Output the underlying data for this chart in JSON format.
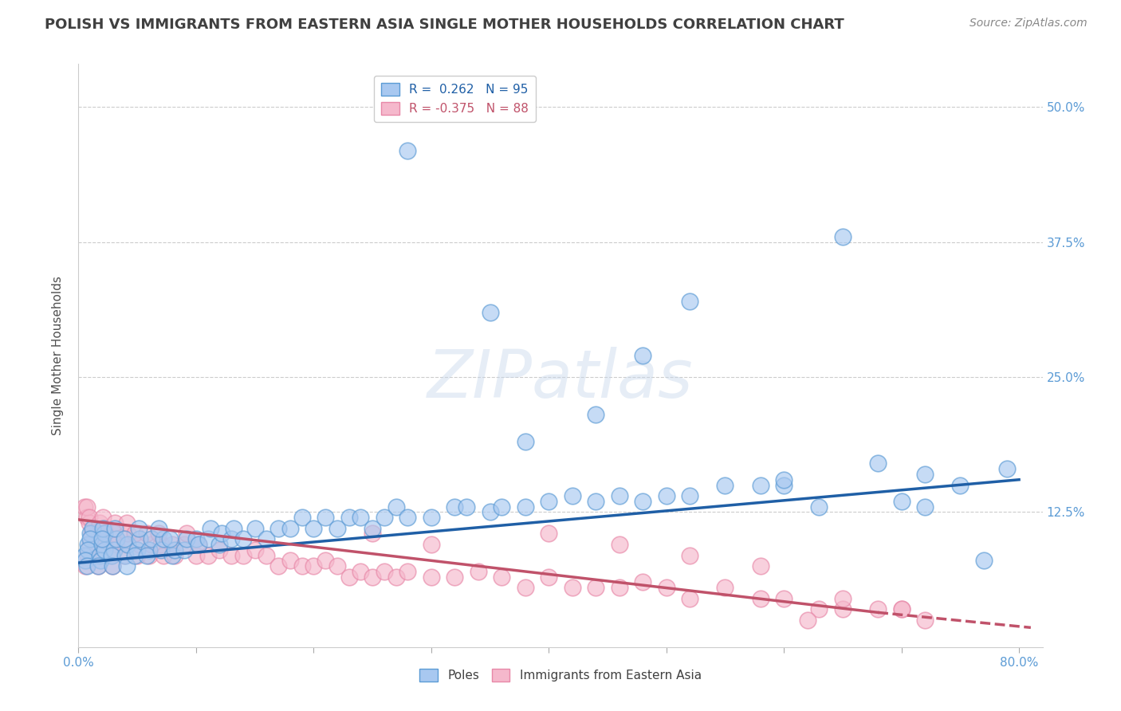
{
  "title": "POLISH VS IMMIGRANTS FROM EASTERN ASIA SINGLE MOTHER HOUSEHOLDS CORRELATION CHART",
  "source_text": "Source: ZipAtlas.com",
  "ylabel": "Single Mother Households",
  "watermark": "ZIPatlas",
  "legend_entries": [
    {
      "label": "Poles",
      "R": 0.262,
      "N": 95
    },
    {
      "label": "Immigrants from Eastern Asia",
      "R": -0.375,
      "N": 88
    }
  ],
  "xlim": [
    0.0,
    0.82
  ],
  "ylim": [
    0.0,
    0.54
  ],
  "yticks": [
    0.0,
    0.125,
    0.25,
    0.375,
    0.5
  ],
  "ytick_labels": [
    "",
    "12.5%",
    "25.0%",
    "37.5%",
    "50.0%"
  ],
  "xticks": [
    0.0,
    0.1,
    0.2,
    0.3,
    0.4,
    0.5,
    0.6,
    0.7,
    0.8
  ],
  "xtick_labels": [
    "0.0%",
    "",
    "",
    "",
    "",
    "",
    "",
    "",
    "80.0%"
  ],
  "blue_fill": "#a8c8f0",
  "blue_edge": "#5b9bd5",
  "blue_line": "#1f5fa6",
  "pink_fill": "#f5b8cc",
  "pink_edge": "#e888a8",
  "pink_line": "#c0526a",
  "background_color": "#ffffff",
  "grid_color": "#cccccc",
  "title_color": "#404040",
  "poles_scatter": {
    "x": [
      0.005,
      0.008,
      0.01,
      0.012,
      0.01,
      0.008,
      0.006,
      0.007,
      0.018,
      0.02,
      0.022,
      0.021,
      0.019,
      0.022,
      0.02,
      0.017,
      0.03,
      0.032,
      0.028,
      0.031,
      0.029,
      0.04,
      0.042,
      0.039,
      0.041,
      0.05,
      0.052,
      0.048,
      0.051,
      0.06,
      0.062,
      0.058,
      0.07,
      0.072,
      0.068,
      0.08,
      0.082,
      0.078,
      0.09,
      0.092,
      0.1,
      0.102,
      0.11,
      0.112,
      0.12,
      0.122,
      0.13,
      0.132,
      0.14,
      0.15,
      0.16,
      0.17,
      0.18,
      0.19,
      0.2,
      0.21,
      0.22,
      0.23,
      0.24,
      0.25,
      0.26,
      0.27,
      0.28,
      0.3,
      0.32,
      0.33,
      0.35,
      0.36,
      0.38,
      0.4,
      0.42,
      0.44,
      0.46,
      0.48,
      0.5,
      0.52,
      0.55,
      0.58,
      0.6,
      0.35,
      0.48,
      0.52,
      0.38,
      0.44,
      0.28,
      0.6,
      0.72,
      0.75,
      0.77,
      0.79,
      0.65,
      0.68,
      0.7,
      0.72,
      0.63
    ],
    "y": [
      0.085,
      0.095,
      0.105,
      0.11,
      0.1,
      0.09,
      0.08,
      0.075,
      0.085,
      0.095,
      0.105,
      0.11,
      0.08,
      0.09,
      0.1,
      0.075,
      0.09,
      0.1,
      0.085,
      0.11,
      0.075,
      0.085,
      0.095,
      0.1,
      0.075,
      0.09,
      0.1,
      0.085,
      0.11,
      0.09,
      0.1,
      0.085,
      0.09,
      0.1,
      0.11,
      0.085,
      0.09,
      0.1,
      0.09,
      0.1,
      0.1,
      0.095,
      0.1,
      0.11,
      0.095,
      0.105,
      0.1,
      0.11,
      0.1,
      0.11,
      0.1,
      0.11,
      0.11,
      0.12,
      0.11,
      0.12,
      0.11,
      0.12,
      0.12,
      0.11,
      0.12,
      0.13,
      0.12,
      0.12,
      0.13,
      0.13,
      0.125,
      0.13,
      0.13,
      0.135,
      0.14,
      0.135,
      0.14,
      0.135,
      0.14,
      0.14,
      0.15,
      0.15,
      0.15,
      0.31,
      0.27,
      0.32,
      0.19,
      0.215,
      0.46,
      0.155,
      0.16,
      0.15,
      0.08,
      0.165,
      0.38,
      0.17,
      0.135,
      0.13,
      0.13
    ]
  },
  "asia_scatter": {
    "x": [
      0.005,
      0.007,
      0.009,
      0.011,
      0.01,
      0.008,
      0.006,
      0.007,
      0.009,
      0.018,
      0.02,
      0.022,
      0.019,
      0.021,
      0.022,
      0.02,
      0.017,
      0.03,
      0.032,
      0.028,
      0.031,
      0.029,
      0.04,
      0.042,
      0.039,
      0.041,
      0.05,
      0.052,
      0.048,
      0.06,
      0.062,
      0.058,
      0.07,
      0.072,
      0.068,
      0.08,
      0.082,
      0.09,
      0.092,
      0.1,
      0.102,
      0.11,
      0.12,
      0.13,
      0.14,
      0.15,
      0.16,
      0.17,
      0.18,
      0.19,
      0.2,
      0.21,
      0.22,
      0.23,
      0.24,
      0.25,
      0.26,
      0.27,
      0.28,
      0.3,
      0.32,
      0.34,
      0.36,
      0.38,
      0.4,
      0.42,
      0.44,
      0.46,
      0.48,
      0.5,
      0.52,
      0.55,
      0.58,
      0.6,
      0.63,
      0.65,
      0.68,
      0.7,
      0.25,
      0.3,
      0.4,
      0.46,
      0.52,
      0.58,
      0.65,
      0.7,
      0.72,
      0.62
    ],
    "y": [
      0.13,
      0.12,
      0.115,
      0.105,
      0.095,
      0.085,
      0.075,
      0.13,
      0.12,
      0.115,
      0.105,
      0.095,
      0.085,
      0.12,
      0.11,
      0.1,
      0.075,
      0.105,
      0.095,
      0.085,
      0.115,
      0.075,
      0.095,
      0.105,
      0.085,
      0.115,
      0.085,
      0.095,
      0.105,
      0.085,
      0.095,
      0.105,
      0.095,
      0.085,
      0.105,
      0.095,
      0.085,
      0.095,
      0.105,
      0.085,
      0.095,
      0.085,
      0.09,
      0.085,
      0.085,
      0.09,
      0.085,
      0.075,
      0.08,
      0.075,
      0.075,
      0.08,
      0.075,
      0.065,
      0.07,
      0.065,
      0.07,
      0.065,
      0.07,
      0.065,
      0.065,
      0.07,
      0.065,
      0.055,
      0.065,
      0.055,
      0.055,
      0.055,
      0.06,
      0.055,
      0.045,
      0.055,
      0.045,
      0.045,
      0.035,
      0.035,
      0.035,
      0.035,
      0.105,
      0.095,
      0.105,
      0.095,
      0.085,
      0.075,
      0.045,
      0.035,
      0.025,
      0.025
    ]
  },
  "blue_trend": {
    "x_start": 0.0,
    "y_start": 0.078,
    "x_end": 0.8,
    "y_end": 0.155
  },
  "pink_trend": {
    "x_start": 0.0,
    "y_start": 0.118,
    "x_end": 0.68,
    "y_end": 0.032,
    "x_dash_start": 0.68,
    "x_dash_end": 0.81,
    "y_dash_start": 0.032,
    "y_dash_end": 0.018
  }
}
